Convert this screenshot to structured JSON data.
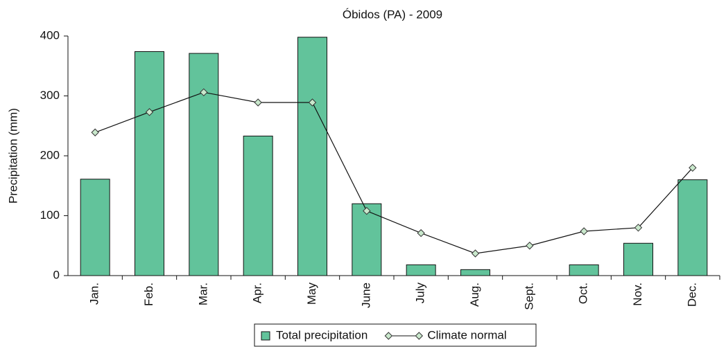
{
  "chart_data": {
    "type": "bar",
    "title": "Óbidos (PA) - 2009",
    "y_label": "Precipitation (mm)",
    "categories": [
      "Jan.",
      "Feb.",
      "Mar.",
      "Apr.",
      "May",
      "June",
      "July",
      "Aug.",
      "Sept.",
      "Oct.",
      "Nov.",
      "Dec."
    ],
    "series": [
      {
        "name": "Total precipitation",
        "type": "bar",
        "color": "#62c39b",
        "values": [
          161,
          374,
          371,
          233,
          398,
          120,
          18,
          10,
          0,
          18,
          54,
          160
        ]
      },
      {
        "name": "Climate normal",
        "type": "line",
        "color": "#111111",
        "marker_color": "#c9e8cc",
        "values": [
          239,
          273,
          306,
          289,
          289,
          108,
          71,
          37,
          50,
          74,
          80,
          180
        ]
      }
    ],
    "ylim": [
      0,
      400
    ],
    "yticks": [
      0,
      100,
      200,
      300,
      400
    ],
    "grid": false,
    "legend": "bottom"
  }
}
